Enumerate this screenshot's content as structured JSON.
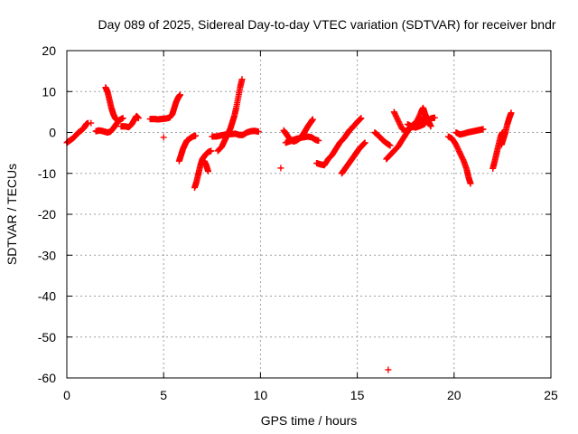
{
  "chart_data": {
    "type": "scatter",
    "title": "Day 089 of 2025, Sidereal Day-to-day VTEC variation (SDTVAR) for receiver bndr",
    "xlabel": "GPS time / hours",
    "ylabel": "SDTVAR / TECUs",
    "xlim": [
      0,
      25
    ],
    "ylim": [
      -60,
      20
    ],
    "x_ticks": [
      0,
      5,
      10,
      15,
      20,
      25
    ],
    "y_ticks": [
      -60,
      -50,
      -40,
      -30,
      -20,
      -10,
      0,
      10,
      20
    ],
    "grid": true,
    "legend": "none",
    "marker": "plus",
    "color": "#ff0000",
    "segments": [
      [
        [
          0.0,
          -2.5
        ],
        [
          0.15,
          -2.0
        ],
        [
          0.3,
          -1.5
        ],
        [
          0.45,
          -0.8
        ],
        [
          0.6,
          0.0
        ],
        [
          0.75,
          0.5
        ],
        [
          0.9,
          1.2
        ],
        [
          1.0,
          2.0
        ],
        [
          1.1,
          2.3
        ]
      ],
      [
        [
          1.25,
          2.3
        ]
      ],
      [
        [
          1.5,
          0.3
        ],
        [
          1.65,
          0.5
        ],
        [
          1.8,
          0.4
        ],
        [
          1.95,
          0.2
        ],
        [
          2.1,
          0.0
        ],
        [
          2.25,
          0.2
        ],
        [
          2.4,
          1.0
        ],
        [
          2.55,
          2.0
        ],
        [
          2.7,
          3.0
        ],
        [
          2.9,
          3.5
        ]
      ],
      [
        [
          2.0,
          11.0
        ],
        [
          2.1,
          10.0
        ],
        [
          2.2,
          8.0
        ],
        [
          2.3,
          6.0
        ],
        [
          2.4,
          4.5
        ],
        [
          2.5,
          3.5
        ],
        [
          2.6,
          3.0
        ]
      ],
      [
        [
          2.8,
          1.5
        ],
        [
          3.0,
          1.5
        ],
        [
          3.2,
          1.3
        ],
        [
          3.35,
          2.0
        ],
        [
          3.5,
          3.2
        ],
        [
          3.6,
          4.0
        ],
        [
          3.7,
          3.5
        ]
      ],
      [
        [
          4.3,
          3.3
        ],
        [
          4.5,
          3.3
        ],
        [
          4.7,
          3.2
        ],
        [
          4.9,
          3.3
        ],
        [
          5.1,
          3.4
        ],
        [
          5.3,
          3.6
        ],
        [
          5.45,
          4.5
        ],
        [
          5.55,
          6.0
        ],
        [
          5.65,
          7.5
        ],
        [
          5.75,
          8.5
        ],
        [
          5.85,
          9.2
        ]
      ],
      [
        [
          5.0,
          -1.2
        ]
      ],
      [
        [
          5.8,
          -7.0
        ],
        [
          5.9,
          -5.5
        ],
        [
          6.0,
          -4.0
        ],
        [
          6.1,
          -3.0
        ],
        [
          6.2,
          -2.0
        ],
        [
          6.35,
          -1.5
        ],
        [
          6.5,
          -1.0
        ],
        [
          6.65,
          -0.8
        ]
      ],
      [
        [
          6.6,
          -13.5
        ],
        [
          6.7,
          -12.0
        ],
        [
          6.8,
          -10.0
        ],
        [
          6.9,
          -8.0
        ],
        [
          7.0,
          -6.5
        ],
        [
          7.15,
          -5.5
        ],
        [
          7.3,
          -4.8
        ],
        [
          7.45,
          -4.5
        ]
      ],
      [
        [
          7.1,
          -7.0
        ],
        [
          7.2,
          -8.0
        ],
        [
          7.3,
          -9.5
        ]
      ],
      [
        [
          7.5,
          -1.0
        ],
        [
          7.7,
          -1.0
        ],
        [
          7.9,
          -0.8
        ],
        [
          8.1,
          -0.6
        ],
        [
          8.3,
          -0.4
        ],
        [
          8.5,
          -0.4
        ],
        [
          8.7,
          -0.3
        ],
        [
          8.9,
          -0.6
        ],
        [
          9.1,
          -0.6
        ],
        [
          9.3,
          0.0
        ],
        [
          9.5,
          0.3
        ],
        [
          9.7,
          0.4
        ],
        [
          9.9,
          0.2
        ]
      ],
      [
        [
          7.8,
          -4.5
        ],
        [
          8.0,
          -3.5
        ],
        [
          8.15,
          -2.0
        ],
        [
          8.3,
          -0.5
        ],
        [
          8.45,
          1.0
        ],
        [
          8.55,
          2.5
        ],
        [
          8.65,
          4.0
        ],
        [
          8.75,
          6.0
        ],
        [
          8.85,
          8.5
        ],
        [
          8.95,
          11.0
        ],
        [
          9.05,
          13.0
        ]
      ],
      [
        [
          11.05,
          -8.7
        ]
      ],
      [
        [
          11.2,
          0.5
        ],
        [
          11.35,
          -0.5
        ],
        [
          11.5,
          -1.5
        ],
        [
          11.7,
          -2.2
        ],
        [
          11.85,
          -2.0
        ],
        [
          12.0,
          -1.5
        ],
        [
          12.15,
          -0.8
        ],
        [
          12.3,
          0.3
        ],
        [
          12.45,
          1.5
        ],
        [
          12.6,
          2.5
        ],
        [
          12.7,
          3.2
        ]
      ],
      [
        [
          11.3,
          -2.5
        ],
        [
          11.5,
          -2.2
        ],
        [
          11.7,
          -1.8
        ],
        [
          11.9,
          -1.5
        ],
        [
          12.2,
          -1.2
        ],
        [
          12.45,
          -1.0
        ],
        [
          12.65,
          -1.2
        ],
        [
          12.85,
          -1.8
        ],
        [
          13.0,
          -2.0
        ]
      ],
      [
        [
          12.9,
          -7.5
        ],
        [
          13.1,
          -7.8
        ],
        [
          13.3,
          -8.0
        ],
        [
          13.5,
          -6.5
        ],
        [
          13.7,
          -5.5
        ],
        [
          13.9,
          -4.0
        ],
        [
          14.1,
          -2.5
        ],
        [
          14.3,
          -1.5
        ],
        [
          14.45,
          -0.5
        ],
        [
          14.6,
          0.5
        ],
        [
          14.75,
          1.2
        ],
        [
          14.9,
          2.0
        ],
        [
          15.05,
          2.8
        ],
        [
          15.2,
          3.5
        ]
      ],
      [
        [
          14.2,
          -10.0
        ],
        [
          14.35,
          -9.0
        ],
        [
          14.5,
          -8.0
        ],
        [
          14.65,
          -7.0
        ],
        [
          14.8,
          -6.0
        ],
        [
          14.95,
          -5.0
        ],
        [
          15.1,
          -4.0
        ],
        [
          15.25,
          -3.2
        ],
        [
          15.4,
          -2.5
        ]
      ],
      [
        [
          16.6,
          -58.0
        ]
      ],
      [
        [
          15.9,
          0.0
        ],
        [
          16.1,
          -0.8
        ],
        [
          16.3,
          -1.8
        ],
        [
          16.5,
          -2.6
        ],
        [
          16.7,
          -3.2
        ]
      ],
      [
        [
          16.5,
          -6.5
        ],
        [
          16.7,
          -5.5
        ],
        [
          16.9,
          -4.5
        ],
        [
          17.1,
          -3.5
        ],
        [
          17.3,
          -2.0
        ],
        [
          17.5,
          -0.5
        ],
        [
          17.7,
          1.0
        ],
        [
          17.9,
          2.0
        ],
        [
          18.1,
          2.5
        ],
        [
          18.3,
          3.0
        ],
        [
          18.5,
          3.5
        ]
      ],
      [
        [
          16.9,
          5.0
        ],
        [
          17.1,
          3.0
        ],
        [
          17.3,
          1.0
        ],
        [
          17.5,
          0.3
        ],
        [
          17.7,
          1.0
        ],
        [
          17.9,
          1.5
        ],
        [
          18.1,
          3.0
        ],
        [
          18.3,
          5.0
        ],
        [
          18.4,
          6.0
        ],
        [
          18.5,
          4.5
        ],
        [
          18.6,
          3.5
        ],
        [
          18.7,
          2.5
        ],
        [
          18.8,
          1.5
        ]
      ],
      [
        [
          17.6,
          2.0
        ],
        [
          17.8,
          1.5
        ],
        [
          18.0,
          1.2
        ],
        [
          18.2,
          1.5
        ],
        [
          18.45,
          2.0
        ],
        [
          18.65,
          3.0
        ],
        [
          18.85,
          3.5
        ],
        [
          19.0,
          3.6
        ]
      ],
      [
        [
          19.7,
          -1.0
        ],
        [
          19.9,
          -1.5
        ],
        [
          20.1,
          -3.0
        ],
        [
          20.3,
          -5.0
        ],
        [
          20.5,
          -7.0
        ],
        [
          20.65,
          -9.0
        ],
        [
          20.75,
          -11.0
        ],
        [
          20.85,
          -12.5
        ]
      ],
      [
        [
          20.1,
          0.0
        ],
        [
          20.3,
          -0.5
        ],
        [
          20.5,
          -0.3
        ],
        [
          20.7,
          0.0
        ],
        [
          20.9,
          0.2
        ],
        [
          21.1,
          0.4
        ],
        [
          21.3,
          0.6
        ],
        [
          21.5,
          0.8
        ]
      ],
      [
        [
          22.0,
          -8.8
        ],
        [
          22.1,
          -7.0
        ],
        [
          22.2,
          -5.0
        ],
        [
          22.3,
          -3.0
        ],
        [
          22.4,
          -1.0
        ],
        [
          22.5,
          0.0
        ]
      ],
      [
        [
          22.45,
          -3.0
        ],
        [
          22.55,
          -1.5
        ],
        [
          22.65,
          0.0
        ],
        [
          22.75,
          2.0
        ],
        [
          22.85,
          3.5
        ],
        [
          22.95,
          4.8
        ]
      ]
    ]
  }
}
